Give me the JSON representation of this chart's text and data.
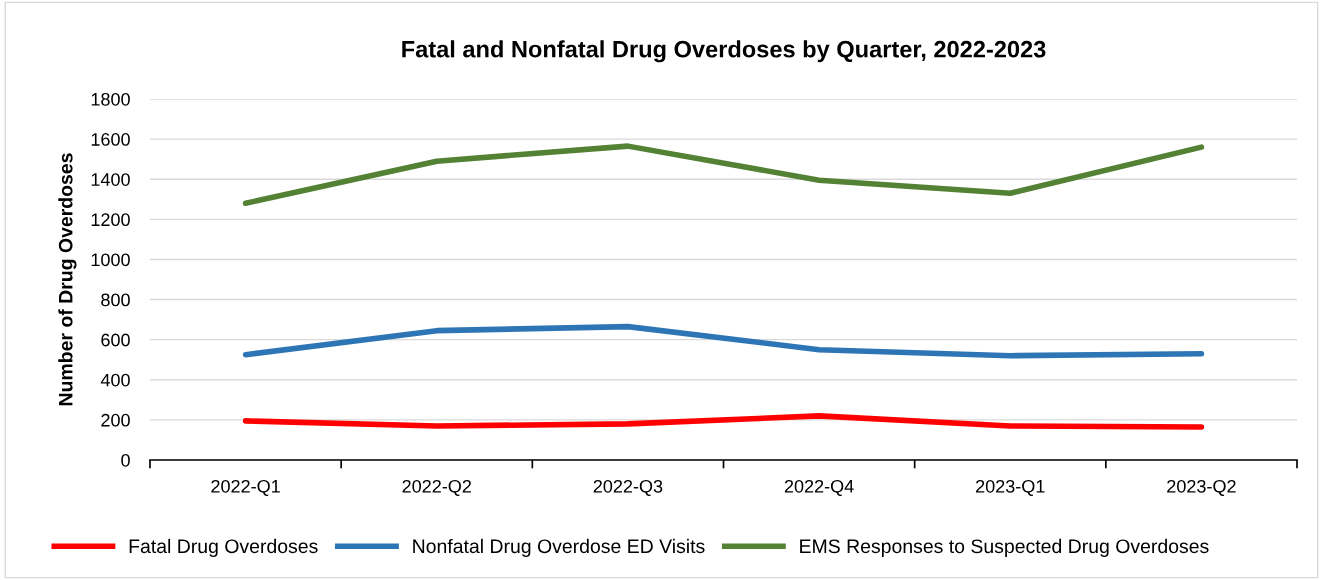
{
  "chart_data": {
    "type": "line",
    "title": "Fatal and Nonfatal Drug Overdoses by Quarter, 2022-2023",
    "ylabel": "Number of Drug Overdoses",
    "categories": [
      "2022-Q1",
      "2022-Q2",
      "2022-Q3",
      "2022-Q4",
      "2023-Q1",
      "2023-Q2"
    ],
    "series": [
      {
        "name": "Fatal Drug Overdoses",
        "color": "#ff0000",
        "values": [
          195,
          170,
          180,
          220,
          170,
          165
        ]
      },
      {
        "name": "Nonfatal Drug Overdose ED Visits",
        "color": "#2e75b6",
        "values": [
          525,
          645,
          665,
          550,
          520,
          530
        ]
      },
      {
        "name": "EMS Responses to Suspected Drug Overdoses",
        "color": "#548235",
        "values": [
          1280,
          1490,
          1565,
          1395,
          1330,
          1560
        ]
      }
    ],
    "ylim": [
      0,
      1800
    ],
    "yticks": [
      0,
      200,
      400,
      600,
      800,
      1000,
      1200,
      1400,
      1600,
      1800
    ],
    "grid": "y",
    "legend": "bottom",
    "marker": "none",
    "line_style": "solid"
  }
}
